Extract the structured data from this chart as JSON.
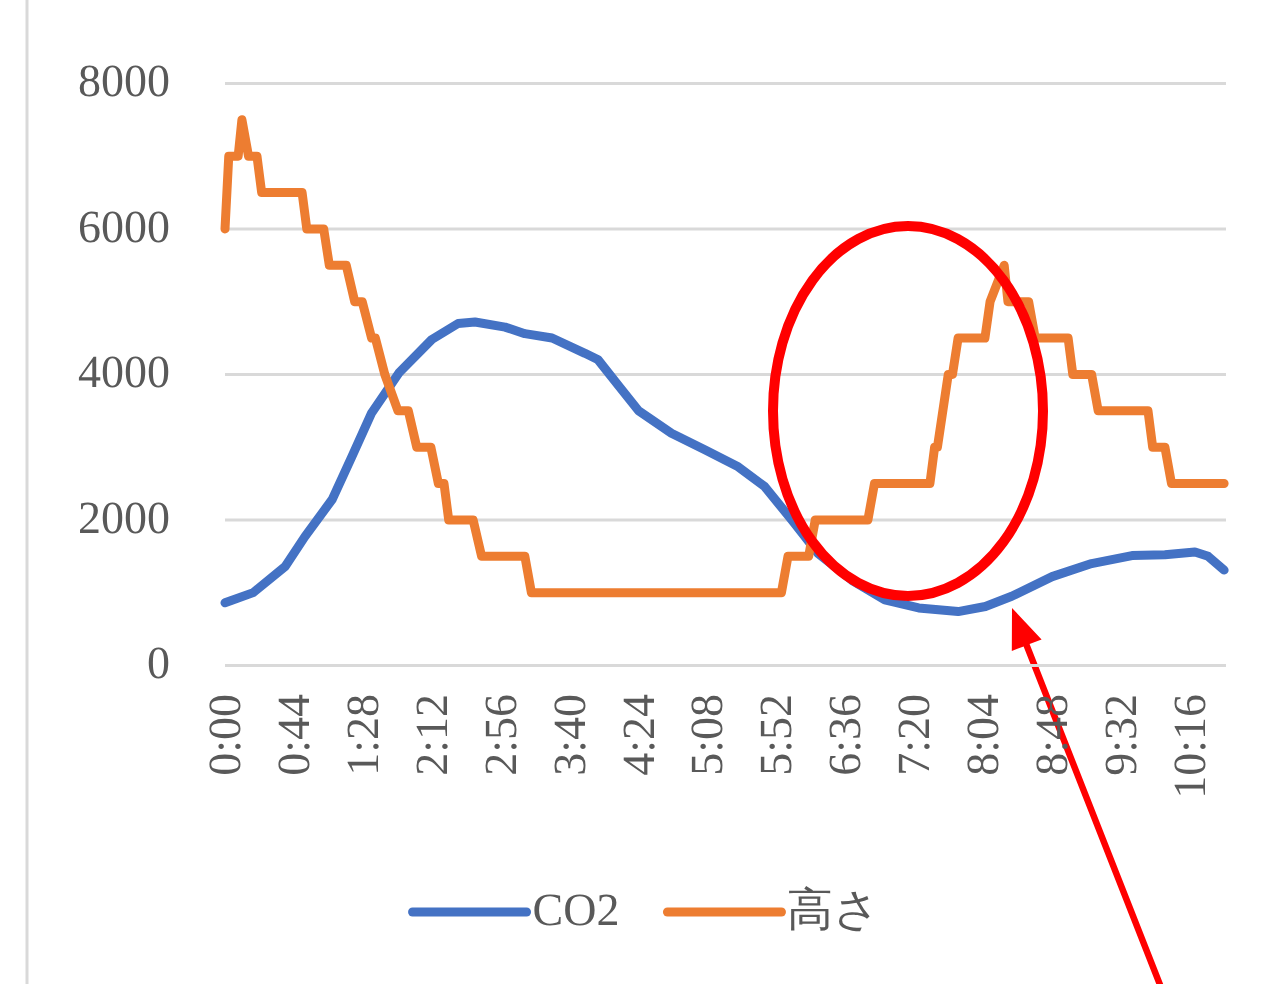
{
  "chart_data": {
    "type": "line",
    "xlim": [
      0,
      10.65
    ],
    "xticks": [
      {
        "value": 0,
        "label": "0:00"
      },
      {
        "value": 0.7333,
        "label": "0:44"
      },
      {
        "value": 1.4667,
        "label": "1:28"
      },
      {
        "value": 2.2,
        "label": "2:12"
      },
      {
        "value": 2.9333,
        "label": "2:56"
      },
      {
        "value": 3.6667,
        "label": "3:40"
      },
      {
        "value": 4.4,
        "label": "4:24"
      },
      {
        "value": 5.1333,
        "label": "5:08"
      },
      {
        "value": 5.8667,
        "label": "5:52"
      },
      {
        "value": 6.6,
        "label": "6:36"
      },
      {
        "value": 7.3333,
        "label": "7:20"
      },
      {
        "value": 8.0667,
        "label": "8:04"
      },
      {
        "value": 8.8,
        "label": "8:48"
      },
      {
        "value": 9.5333,
        "label": "9:32"
      },
      {
        "value": 10.2667,
        "label": "10:16"
      }
    ],
    "ylim": [
      0,
      8000
    ],
    "yticks": [
      0,
      2000,
      4000,
      6000,
      8000
    ],
    "grid": "y",
    "legend": "bottom",
    "series": [
      {
        "name": "CO2",
        "color": "#4472c4",
        "x": [
          0,
          0.3,
          0.64,
          0.85,
          1.14,
          1.35,
          1.56,
          1.85,
          2.2,
          2.48,
          2.66,
          2.98,
          3.19,
          3.48,
          3.83,
          3.97,
          4.19,
          4.4,
          4.75,
          5.11,
          5.46,
          5.74,
          6.03,
          6.31,
          6.67,
          7.02,
          7.38,
          7.8,
          8.09,
          8.37,
          8.8,
          9.22,
          9.65,
          10.0,
          10.32,
          10.46,
          10.63
        ],
        "values": [
          860,
          1000,
          1360,
          1770,
          2280,
          2870,
          3470,
          4020,
          4480,
          4700,
          4720,
          4650,
          4560,
          4500,
          4290,
          4200,
          3840,
          3500,
          3190,
          2960,
          2730,
          2460,
          2000,
          1540,
          1170,
          900,
          790,
          740,
          810,
          950,
          1220,
          1400,
          1510,
          1520,
          1560,
          1500,
          1310
        ]
      },
      {
        "name": "高さ",
        "color": "#ed7d31",
        "x": [
          0,
          0.04,
          0.14,
          0.18,
          0.25,
          0.34,
          0.39,
          0.82,
          0.87,
          1.05,
          1.11,
          1.29,
          1.38,
          1.46,
          1.56,
          1.6,
          1.7,
          1.84,
          1.95,
          2.04,
          2.19,
          2.27,
          2.33,
          2.38,
          2.64,
          2.73,
          3.19,
          3.26,
          5.92,
          5.99,
          6.21,
          6.28,
          6.84,
          6.91,
          7.5,
          7.55,
          7.58,
          7.695,
          7.74,
          7.8,
          8.085,
          8.14,
          8.29,
          8.33,
          8.55,
          8.62,
          8.97,
          9.02,
          9.22,
          9.29,
          9.82,
          9.87,
          10.0,
          10.07,
          10.63
        ],
        "values": [
          6000,
          7000,
          7000,
          7500,
          7000,
          7000,
          6500,
          6500,
          6000,
          6000,
          5500,
          5500,
          5000,
          5000,
          4500,
          4500,
          4000,
          3500,
          3500,
          3000,
          3000,
          2500,
          2500,
          2000,
          2000,
          1500,
          1500,
          1000,
          1000,
          1500,
          1500,
          2000,
          2000,
          2500,
          2500,
          3000,
          3000,
          4000,
          4000,
          4500,
          4500,
          5000,
          5500,
          5000,
          5000,
          4500,
          4500,
          4000,
          4000,
          3500,
          3500,
          3000,
          3000,
          2500,
          2500
        ]
      }
    ]
  }
}
